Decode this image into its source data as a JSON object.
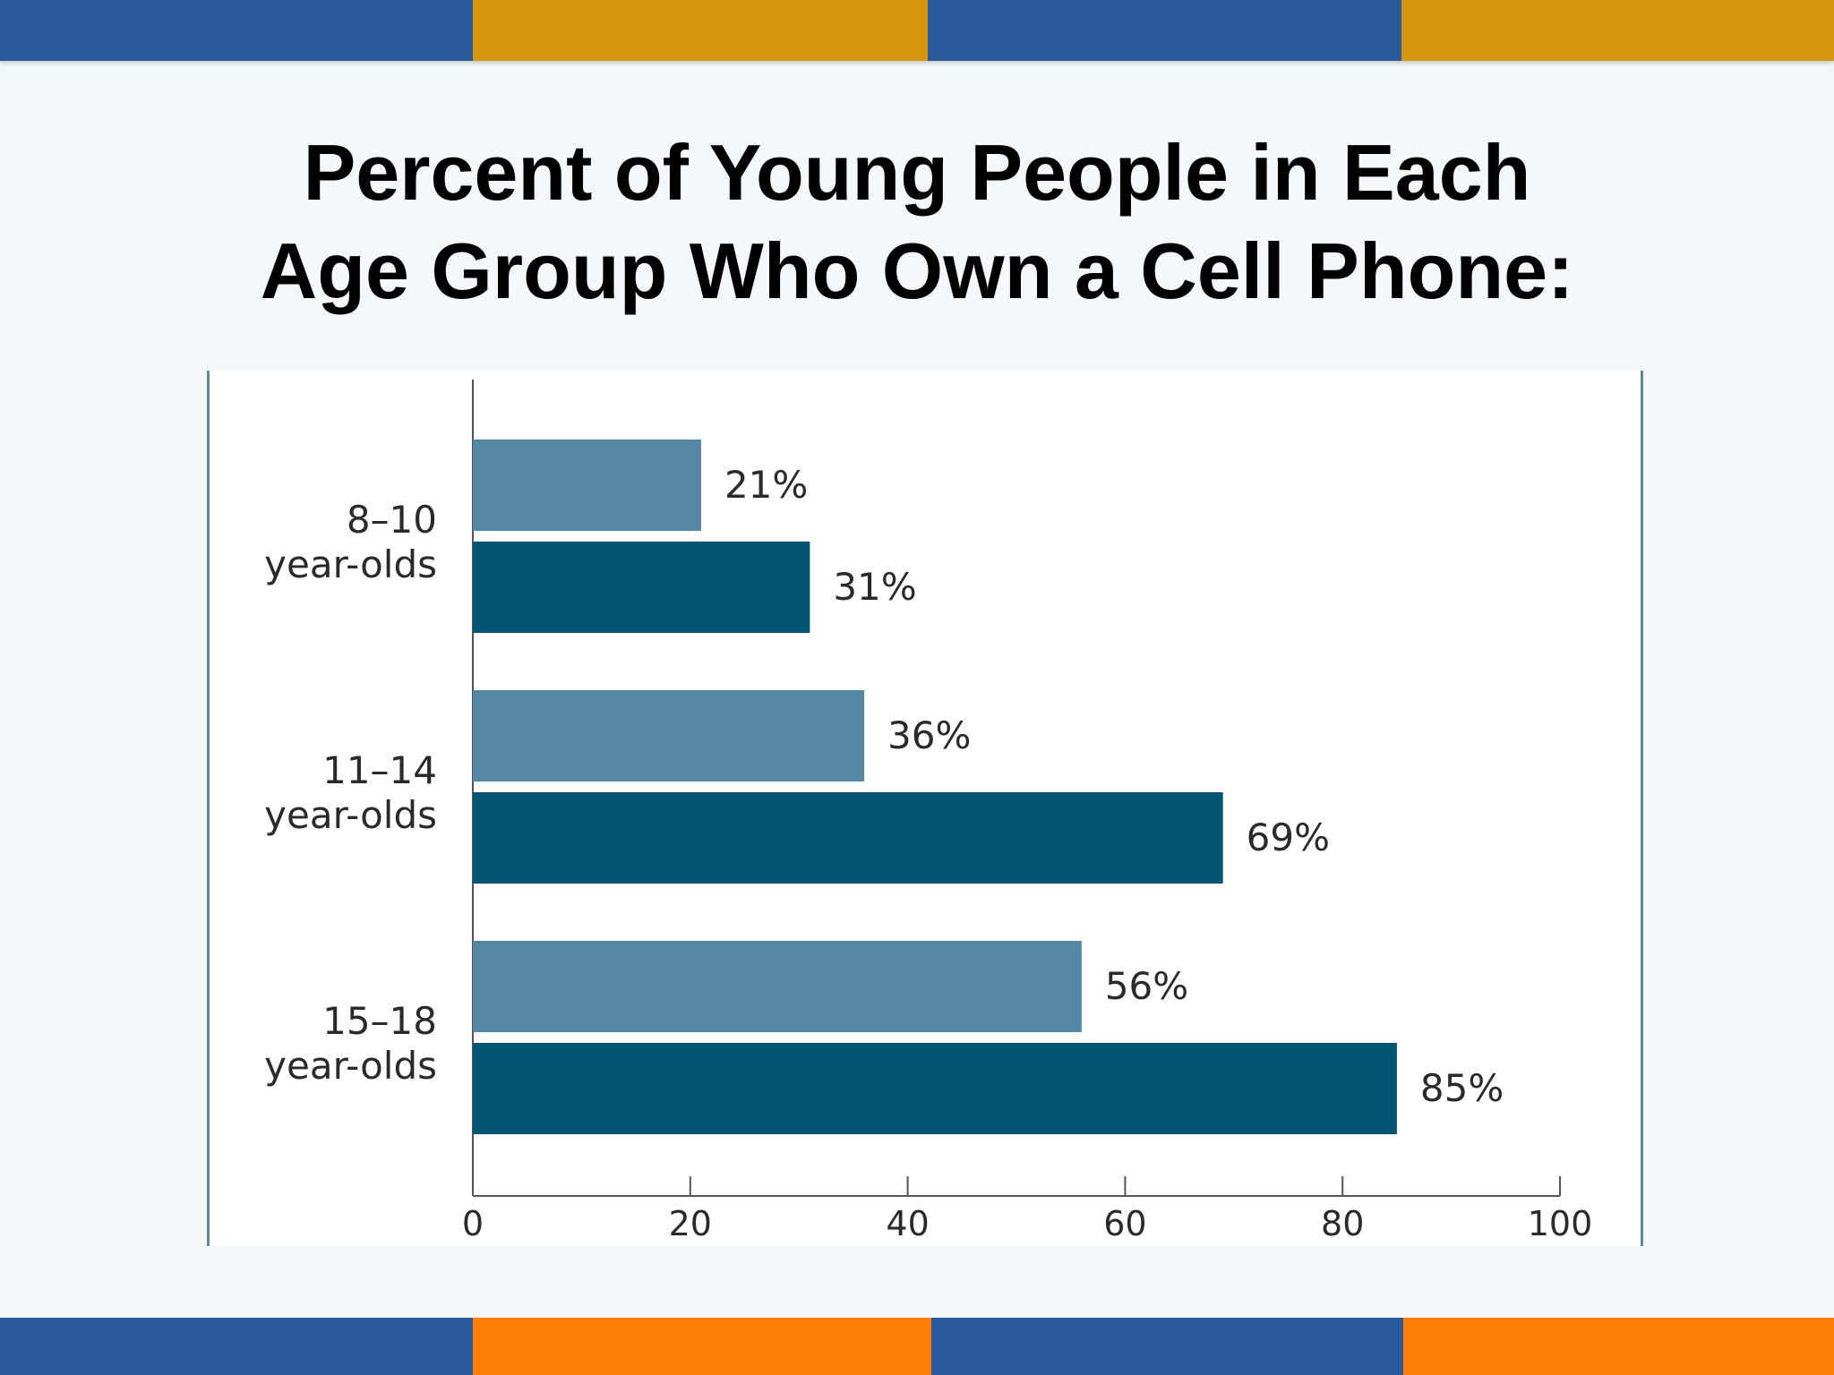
{
  "colors": {
    "band_blue": "#2a5a9a",
    "band_gold": "#d4960e",
    "band_orange": "#ff7f0a",
    "bar_light": "#5587a5",
    "bar_dark": "#045575",
    "axis": "#555555"
  },
  "title_lines": [
    "Percent of Young People in Each",
    "Age Group Who Own a Cell Phone:"
  ],
  "chart_data": {
    "type": "bar",
    "orientation": "horizontal",
    "title": "Percent of Young People in Each Age Group Who Own a Cell Phone:",
    "categories": [
      [
        "8–10",
        "year-olds"
      ],
      [
        "11–14",
        "year-olds"
      ],
      [
        "15–18",
        "year-olds"
      ]
    ],
    "series": [
      {
        "values": [
          21,
          36,
          56
        ],
        "labels": [
          "21%",
          "36%",
          "56%"
        ],
        "color": "#5587a5"
      },
      {
        "values": [
          31,
          69,
          85
        ],
        "labels": [
          "31%",
          "69%",
          "85%"
        ],
        "color": "#045575"
      }
    ],
    "xlim": [
      0,
      100
    ],
    "xticks": [
      "0",
      "20",
      "40",
      "60",
      "80",
      "100"
    ],
    "grid": false,
    "legend": "none"
  }
}
